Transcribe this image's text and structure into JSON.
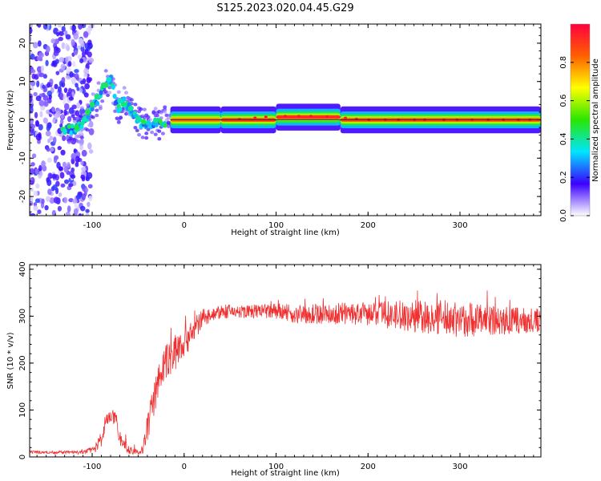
{
  "figure_title": "S125.2023.020.04.45.G29",
  "chart_data": [
    {
      "type": "heatmap",
      "xlabel": "Height of straight line (km)",
      "ylabel": "Frequency (Hz)",
      "xlim": [
        -168,
        388
      ],
      "ylim": [
        -25,
        25
      ],
      "xticks": [
        -100,
        0,
        100,
        200,
        300
      ],
      "yticks": [
        -20,
        -10,
        0,
        10,
        20
      ],
      "colorbar": {
        "label": "Normalized spectral amplitude",
        "range": [
          0,
          1
        ],
        "ticks": [
          0.0,
          0.2,
          0.4,
          0.6,
          0.8
        ],
        "tick_labels": [
          "0.0",
          "0.2",
          "0.4",
          "0.6",
          "0.8"
        ],
        "stops": [
          "#ffffff",
          "#3b00ff",
          "#00e5ff",
          "#29e600",
          "#ffff00",
          "#ff6000",
          "#ff0040"
        ]
      },
      "ridge": {
        "x": [
          -130,
          -115,
          -105,
          -95,
          -85,
          -80,
          -72,
          -65,
          -55,
          -45,
          -35,
          -25,
          -15,
          0,
          20,
          50,
          100,
          130,
          150,
          200,
          388
        ],
        "y": [
          -3,
          -2,
          1,
          5,
          9,
          11,
          3,
          5,
          1,
          -1,
          -1,
          -1,
          0,
          0,
          0,
          0,
          1,
          1,
          1,
          0,
          0
        ]
      },
      "bands": [
        {
          "x_from": -15,
          "x_to": 40,
          "y": 0,
          "amplitude": 0.8
        },
        {
          "x_from": 40,
          "x_to": 100,
          "y": 0,
          "amplitude": 0.88
        },
        {
          "x_from": 100,
          "x_to": 170,
          "y": 0.7,
          "amplitude": 0.92
        },
        {
          "x_from": 170,
          "x_to": 388,
          "y": 0,
          "amplitude": 0.85
        }
      ],
      "scatter_region": {
        "x_from": -168,
        "x_to": -100,
        "y_from": -25,
        "y_to": 25
      }
    },
    {
      "type": "line",
      "xlabel": "Height of straight line (km)",
      "ylabel": "SNR (10 * v/v)",
      "xlim": [
        -168,
        388
      ],
      "ylim": [
        0,
        410
      ],
      "xticks": [
        -100,
        0,
        100,
        200,
        300
      ],
      "yticks": [
        0,
        100,
        200,
        300,
        400
      ],
      "color": "#f03030",
      "envelope": {
        "x": [
          -168,
          -110,
          -95,
          -90,
          -85,
          -80,
          -75,
          -70,
          -60,
          -50,
          -45,
          -40,
          -30,
          -20,
          -10,
          0,
          10,
          20,
          30,
          50,
          80,
          100,
          120,
          150,
          200,
          250,
          300,
          350,
          388
        ],
        "y": [
          10,
          10,
          20,
          40,
          80,
          90,
          80,
          40,
          15,
          10,
          15,
          60,
          150,
          200,
          225,
          250,
          270,
          295,
          305,
          310,
          310,
          310,
          305,
          305,
          305,
          300,
          295,
          290,
          290
        ],
        "noise": [
          3,
          3,
          10,
          20,
          15,
          15,
          15,
          15,
          8,
          5,
          10,
          30,
          40,
          40,
          40,
          40,
          30,
          20,
          15,
          15,
          15,
          18,
          20,
          22,
          25,
          35,
          40,
          30,
          25
        ]
      }
    }
  ]
}
